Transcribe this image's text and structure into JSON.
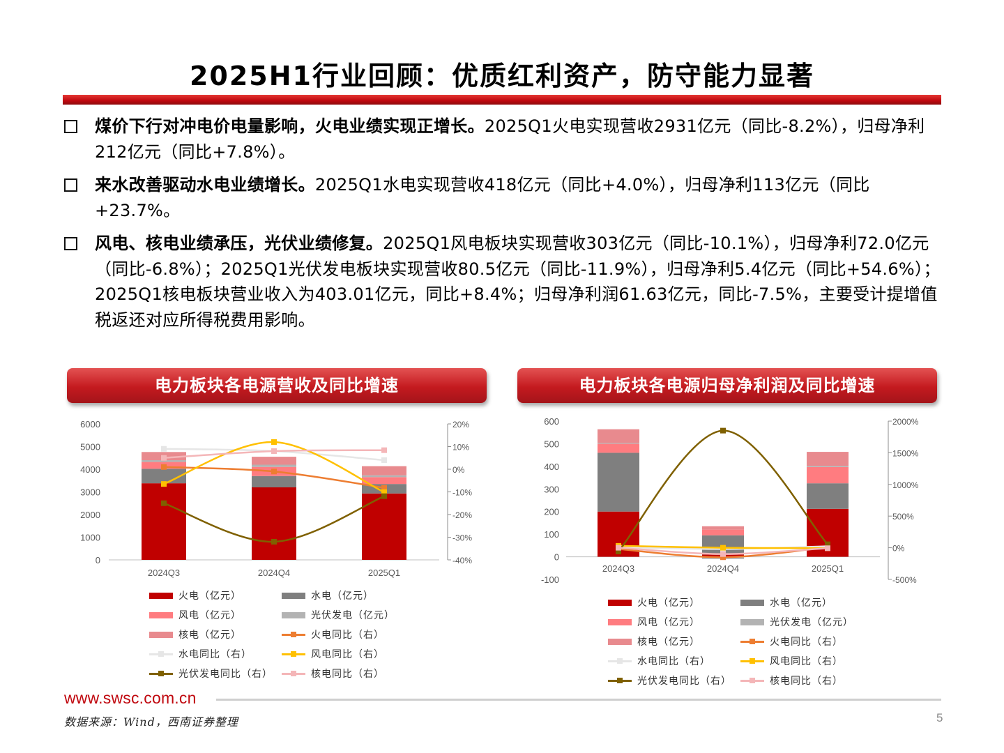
{
  "title": "2025H1行业回顾：优质红利资产，防守能力显著",
  "bullets": [
    {
      "bold": "煤价下行对冲电价电量影响，火电业绩实现正增长。",
      "text": "2025Q1火电实现营收2931亿元（同比-8.2%），归母净利212亿元（同比+7.8%）。"
    },
    {
      "bold": "来水改善驱动水电业绩增长。",
      "text": "2025Q1水电实现营收418亿元（同比+4.0%），归母净利113亿元（同比+23.7%。"
    },
    {
      "bold": "风电、核电业绩承压，光伏业绩修复。",
      "text": "2025Q1风电板块实现营收303亿元（同比-10.1%），归母净利72.0亿元（同比-6.8%）；2025Q1光伏发电板块实现营收80.5亿元（同比-11.9%），归母净利5.4亿元（同比+54.6%）；2025Q1核电板块营业收入为403.01亿元，同比+8.4%；归母净利润61.63亿元，同比-7.5%，主要受计提增值税返还对应所得税费用影响。"
    }
  ],
  "colors": {
    "fire": "#c00000",
    "hydro": "#7f7f7f",
    "wind": "#ff7c80",
    "solar": "#b3b3b3",
    "nuclear": "#e88a8e",
    "fire_yoy": "#ed7d31",
    "hydro_yoy": "#e6e6e6",
    "wind_yoy": "#ffc000",
    "solar_yoy": "#7f6000",
    "nuclear_yoy": "#f4b6b8"
  },
  "legend_labels": [
    "火电（亿元）",
    "水电（亿元）",
    "风电（亿元）",
    "光伏发电（亿元）",
    "核电（亿元）",
    "火电同比（右）",
    "水电同比（右）",
    "风电同比（右）",
    "光伏发电同比（右）",
    "核电同比（右）"
  ],
  "chart_data": [
    {
      "type": "bar",
      "title": "电力板块各电源营收及同比增速",
      "stacked": true,
      "categories": [
        "2024Q3",
        "2024Q4",
        "2025Q1"
      ],
      "ylim": [
        0,
        6000
      ],
      "y_ticks": [
        "6000",
        "5000",
        "4000",
        "3000",
        "2000",
        "1000",
        "0"
      ],
      "y2lim": [
        -40,
        20
      ],
      "y2_ticks": [
        "20%",
        "10%",
        "0%",
        "-10%",
        "-20%",
        "-30%",
        "-40%"
      ],
      "series": [
        {
          "name": "火电（亿元）",
          "kind": "bar",
          "values": [
            3380,
            3200,
            2931
          ]
        },
        {
          "name": "水电（亿元）",
          "kind": "bar",
          "values": [
            640,
            500,
            418
          ]
        },
        {
          "name": "风电（亿元）",
          "kind": "bar",
          "values": [
            300,
            400,
            303
          ]
        },
        {
          "name": "光伏发电（亿元）",
          "kind": "bar",
          "values": [
            80,
            100,
            80.5
          ]
        },
        {
          "name": "核电（亿元）",
          "kind": "bar",
          "values": [
            360,
            350,
            403
          ]
        },
        {
          "name": "火电同比（右）",
          "kind": "line",
          "axis": "right",
          "values": [
            1,
            -1,
            -8.2
          ]
        },
        {
          "name": "水电同比（右）",
          "kind": "line",
          "axis": "right",
          "values": [
            9,
            8,
            4
          ]
        },
        {
          "name": "风电同比（右）",
          "kind": "line",
          "axis": "right",
          "values": [
            -6.5,
            12,
            -10.1
          ]
        },
        {
          "name": "光伏发电同比（右）",
          "kind": "line",
          "axis": "right",
          "values": [
            -15,
            -32,
            -11.9
          ]
        },
        {
          "name": "核电同比（右）",
          "kind": "line",
          "axis": "right",
          "values": [
            5,
            8,
            8.4
          ]
        }
      ]
    },
    {
      "type": "bar",
      "title": "电力板块各电源归母净利润及同比增速",
      "stacked": true,
      "categories": [
        "2024Q3",
        "2024Q4",
        "2025Q1"
      ],
      "ylim": [
        -100,
        600
      ],
      "y_ticks": [
        "600",
        "500",
        "400",
        "300",
        "200",
        "100",
        "0",
        "-100"
      ],
      "y2lim": [
        -500,
        2000
      ],
      "y2_ticks": [
        "2000%",
        "1500%",
        "1000%",
        "500%",
        "0%",
        "-500%"
      ],
      "series": [
        {
          "name": "火电（亿元）",
          "kind": "bar",
          "values": [
            200,
            10,
            212
          ]
        },
        {
          "name": "水电（亿元）",
          "kind": "bar",
          "values": [
            260,
            85,
            113
          ]
        },
        {
          "name": "风电（亿元）",
          "kind": "bar",
          "values": [
            40,
            25,
            72
          ]
        },
        {
          "name": "光伏发电（亿元）",
          "kind": "bar",
          "values": [
            4,
            -10,
            5.4
          ]
        },
        {
          "name": "核电（亿元）",
          "kind": "bar",
          "values": [
            60,
            15,
            61.63
          ]
        },
        {
          "name": "火电同比（右）",
          "kind": "line",
          "axis": "right",
          "values": [
            -20,
            -150,
            7.8
          ]
        },
        {
          "name": "水电同比（右）",
          "kind": "line",
          "axis": "right",
          "values": [
            10,
            -20,
            23.7
          ]
        },
        {
          "name": "风电同比（右）",
          "kind": "line",
          "axis": "right",
          "values": [
            30,
            0,
            -6.8
          ]
        },
        {
          "name": "光伏发电同比（右）",
          "kind": "line",
          "axis": "right",
          "values": [
            -60,
            1850,
            54.6
          ]
        },
        {
          "name": "核电同比（右）",
          "kind": "line",
          "axis": "right",
          "values": [
            0,
            -100,
            -7.5
          ]
        }
      ]
    }
  ],
  "footer": {
    "url": "www.swsc.com.cn",
    "source": "数据来源：Wind，西南证券整理",
    "page": "5"
  }
}
